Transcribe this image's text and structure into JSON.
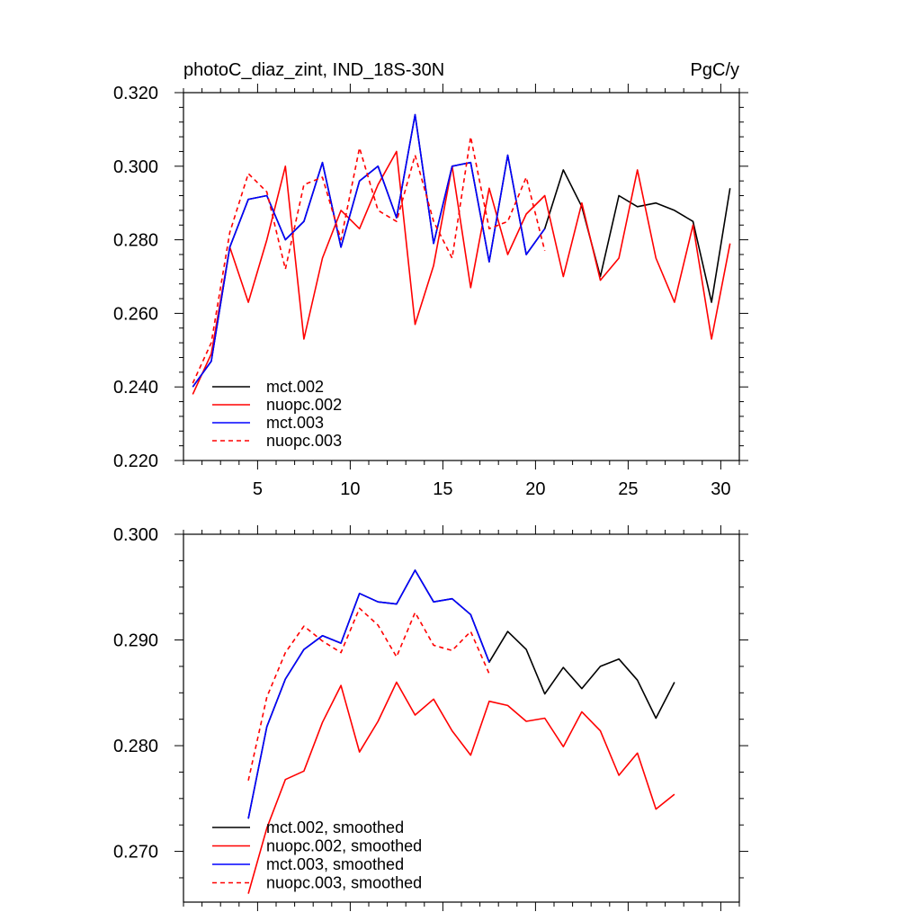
{
  "chart_data": [
    {
      "type": "line",
      "title": "photoC_diaz_zint, IND_18S-30N",
      "units": "PgC/y",
      "xlim": [
        1,
        31
      ],
      "ylim": [
        0.22,
        0.32
      ],
      "xticks": [
        5,
        10,
        15,
        20,
        25,
        30
      ],
      "xtick_labels": [
        "5",
        "10",
        "15",
        "20",
        "25",
        "30"
      ],
      "yticks": [
        0.22,
        0.24,
        0.26,
        0.28,
        0.3,
        0.32
      ],
      "ytick_labels": [
        "0.220",
        "0.240",
        "0.260",
        "0.280",
        "0.300",
        "0.320"
      ],
      "legend_position": "bottom-left",
      "series": [
        {
          "name": "mct.002",
          "color": "#000000",
          "dash": "solid",
          "x": [
            1.5,
            2.5,
            3.5,
            4.5,
            5.5,
            6.5,
            7.5,
            8.5,
            9.5,
            10.5,
            11.5,
            12.5,
            13.5,
            14.5,
            15.5,
            16.5,
            17.5,
            18.5,
            19.5,
            20.5,
            21.5,
            22.5,
            23.5,
            24.5,
            25.5,
            26.5,
            27.5,
            28.5,
            29.5,
            30.5
          ],
          "values": [
            0.24,
            0.247,
            0.278,
            0.291,
            0.292,
            0.28,
            0.285,
            0.301,
            0.278,
            0.296,
            0.3,
            0.286,
            0.314,
            0.279,
            0.3,
            0.301,
            0.274,
            0.303,
            0.276,
            0.283,
            0.299,
            0.289,
            0.27,
            0.292,
            0.289,
            0.29,
            0.288,
            0.285,
            0.263,
            0.294
          ]
        },
        {
          "name": "nuopc.002",
          "color": "#ff0000",
          "dash": "solid",
          "x": [
            1.5,
            2.5,
            3.5,
            4.5,
            5.5,
            6.5,
            7.5,
            8.5,
            9.5,
            10.5,
            11.5,
            12.5,
            13.5,
            14.5,
            15.5,
            16.5,
            17.5,
            18.5,
            19.5,
            20.5,
            21.5,
            22.5,
            23.5,
            24.5,
            25.5,
            26.5,
            27.5,
            28.5,
            29.5,
            30.5
          ],
          "values": [
            0.238,
            0.249,
            0.278,
            0.263,
            0.28,
            0.3,
            0.253,
            0.275,
            0.288,
            0.283,
            0.295,
            0.304,
            0.257,
            0.273,
            0.3,
            0.267,
            0.294,
            0.276,
            0.287,
            0.292,
            0.27,
            0.29,
            0.269,
            0.275,
            0.299,
            0.275,
            0.263,
            0.284,
            0.253,
            0.279
          ]
        },
        {
          "name": "mct.003",
          "color": "#0000ff",
          "dash": "solid",
          "x": [
            1.5,
            2.5,
            3.5,
            4.5,
            5.5,
            6.5,
            7.5,
            8.5,
            9.5,
            10.5,
            11.5,
            12.5,
            13.5,
            14.5,
            15.5,
            16.5,
            17.5,
            18.5,
            19.5,
            20.5
          ],
          "values": [
            0.24,
            0.247,
            0.278,
            0.291,
            0.292,
            0.28,
            0.285,
            0.301,
            0.278,
            0.296,
            0.3,
            0.286,
            0.314,
            0.279,
            0.3,
            0.301,
            0.274,
            0.303,
            0.276,
            0.283
          ]
        },
        {
          "name": "nuopc.003",
          "color": "#ff0000",
          "dash": "dashed",
          "x": [
            1.5,
            2.5,
            3.5,
            4.5,
            5.5,
            6.5,
            7.5,
            8.5,
            9.5,
            10.5,
            11.5,
            12.5,
            13.5,
            14.5,
            15.5,
            16.5,
            17.5,
            18.5,
            19.5,
            20.5
          ],
          "values": [
            0.241,
            0.252,
            0.282,
            0.298,
            0.293,
            0.272,
            0.295,
            0.297,
            0.28,
            0.305,
            0.288,
            0.285,
            0.303,
            0.285,
            0.275,
            0.308,
            0.283,
            0.285,
            0.297,
            0.277
          ]
        }
      ]
    },
    {
      "type": "line",
      "title": "",
      "xlim": [
        1,
        31
      ],
      "ylim": [
        0.2652,
        0.3
      ],
      "xticks": [
        5,
        10,
        15,
        20,
        25,
        30
      ],
      "xtick_labels": [],
      "yticks": [
        0.27,
        0.28,
        0.29,
        0.3
      ],
      "ytick_labels": [
        "0.270",
        "0.280",
        "0.290",
        "0.300"
      ],
      "legend_position": "bottom-left",
      "series": [
        {
          "name": "mct.002, smoothed",
          "color": "#000000",
          "dash": "solid",
          "x": [
            4.5,
            5.5,
            6.5,
            7.5,
            8.5,
            9.5,
            10.5,
            11.5,
            12.5,
            13.5,
            14.5,
            15.5,
            16.5,
            17.5,
            18.5,
            19.5,
            20.5,
            21.5,
            22.5,
            23.5,
            24.5,
            25.5,
            26.5,
            27.5
          ],
          "values": [
            0.2731,
            0.2818,
            0.2863,
            0.2891,
            0.2904,
            0.2897,
            0.2944,
            0.2936,
            0.2934,
            0.2966,
            0.2936,
            0.2939,
            0.2924,
            0.2879,
            0.2908,
            0.2891,
            0.2849,
            0.2874,
            0.2854,
            0.2875,
            0.2882,
            0.2862,
            0.2826,
            0.286
          ]
        },
        {
          "name": "nuopc.002, smoothed",
          "color": "#ff0000",
          "dash": "solid",
          "x": [
            4.5,
            5.5,
            6.5,
            7.5,
            8.5,
            9.5,
            10.5,
            11.5,
            12.5,
            13.5,
            14.5,
            15.5,
            16.5,
            17.5,
            18.5,
            19.5,
            20.5,
            21.5,
            22.5,
            23.5,
            24.5,
            25.5,
            26.5,
            27.5
          ],
          "values": [
            0.266,
            0.2722,
            0.2768,
            0.2776,
            0.2822,
            0.2857,
            0.2794,
            0.2823,
            0.286,
            0.2829,
            0.2844,
            0.2814,
            0.2791,
            0.2842,
            0.2838,
            0.2823,
            0.2826,
            0.2799,
            0.2832,
            0.2814,
            0.2772,
            0.2793,
            0.274,
            0.2754
          ]
        },
        {
          "name": "mct.003, smoothed",
          "color": "#0000ff",
          "dash": "solid",
          "x": [
            4.5,
            5.5,
            6.5,
            7.5,
            8.5,
            9.5,
            10.5,
            11.5,
            12.5,
            13.5,
            14.5,
            15.5,
            16.5,
            17.5
          ],
          "values": [
            0.2731,
            0.2818,
            0.2863,
            0.2891,
            0.2904,
            0.2897,
            0.2944,
            0.2936,
            0.2934,
            0.2966,
            0.2936,
            0.2939,
            0.2924,
            0.2879
          ]
        },
        {
          "name": "nuopc.003, smoothed",
          "color": "#ff0000",
          "dash": "dashed",
          "x": [
            4.5,
            5.5,
            6.5,
            7.5,
            8.5,
            9.5,
            10.5,
            11.5,
            12.5,
            13.5,
            14.5,
            15.5,
            16.5,
            17.5
          ],
          "values": [
            0.2767,
            0.2846,
            0.2888,
            0.2913,
            0.2899,
            0.2888,
            0.293,
            0.2914,
            0.2884,
            0.2926,
            0.2895,
            0.289,
            0.2908,
            0.2868
          ]
        }
      ]
    }
  ]
}
